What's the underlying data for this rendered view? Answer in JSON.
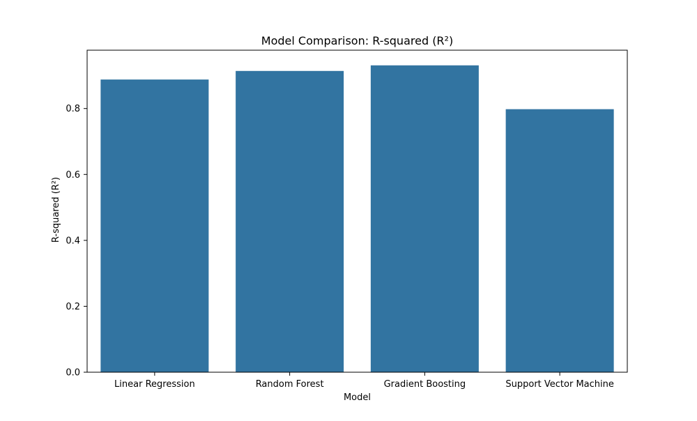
{
  "chart_data": {
    "type": "bar",
    "title": "Model Comparison: R-squared (R²)",
    "xlabel": "Model",
    "ylabel": "R-squared (R²)",
    "categories": [
      "Linear Regression",
      "Random Forest",
      "Gradient Boosting",
      "Support Vector Machine"
    ],
    "values": [
      0.888,
      0.914,
      0.931,
      0.798
    ],
    "ylim": [
      0,
      0.977
    ],
    "yticks": [
      0.0,
      0.2,
      0.4,
      0.6,
      0.8
    ],
    "ytick_labels": [
      "0.0",
      "0.2",
      "0.4",
      "0.6",
      "0.8"
    ],
    "grid": false,
    "bar_color": "#3274a1"
  }
}
